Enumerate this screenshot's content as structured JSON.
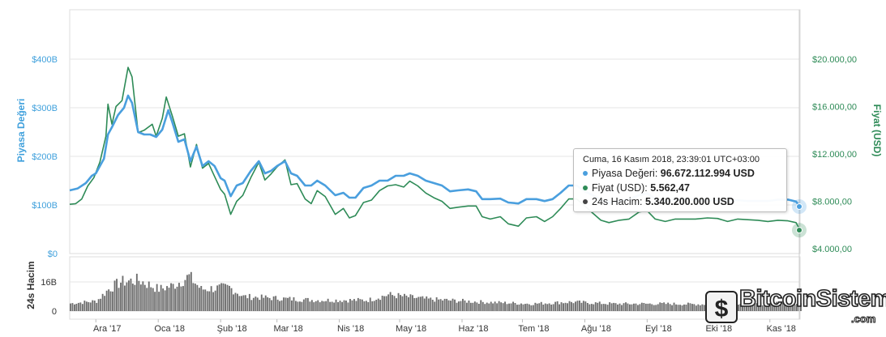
{
  "chart_data": {
    "type": "line",
    "left_axis": {
      "label": "Piyasa Değeri",
      "ticks": [
        "$0",
        "$100B",
        "$200B",
        "$300B",
        "$400B"
      ],
      "tick_values": [
        0,
        100,
        200,
        300,
        400
      ],
      "color": "#3fa0dc"
    },
    "right_axis": {
      "label": "Fiyat (USD)",
      "ticks": [
        "$4.000,00",
        "$8.000,00",
        "$12.000,00",
        "$16.000,00",
        "$20.000,00"
      ],
      "tick_values": [
        4000,
        8000,
        12000,
        16000,
        20000
      ],
      "color": "#2e8b57"
    },
    "volume_axis": {
      "label": "24s Hacim",
      "ticks": [
        "0",
        "16B"
      ],
      "tick_values": [
        0,
        16
      ]
    },
    "x_labels": [
      "Ara '17",
      "Oca '18",
      "Şub '18",
      "Mar '18",
      "Nis '18",
      "May '18",
      "Haz '18",
      "Tem '18",
      "Ağu '18",
      "Eyl '18",
      "Eki '18",
      "Kas '18"
    ],
    "x_range": [
      "2017-11-18",
      "2018-11-16"
    ],
    "series": [
      {
        "name": "Piyasa Değeri",
        "color": "#4a9fde",
        "unit": "B USD",
        "points": [
          [
            "2017-11-18",
            130
          ],
          [
            "2017-11-22",
            134
          ],
          [
            "2017-11-26",
            145
          ],
          [
            "2017-11-29",
            160
          ],
          [
            "2017-12-01",
            165
          ],
          [
            "2017-12-05",
            195
          ],
          [
            "2017-12-07",
            245
          ],
          [
            "2017-12-09",
            260
          ],
          [
            "2017-12-12",
            285
          ],
          [
            "2017-12-15",
            300
          ],
          [
            "2017-12-17",
            325
          ],
          [
            "2017-12-19",
            310
          ],
          [
            "2017-12-22",
            250
          ],
          [
            "2017-12-25",
            245
          ],
          [
            "2017-12-28",
            245
          ],
          [
            "2017-12-31",
            240
          ],
          [
            "2018-01-03",
            255
          ],
          [
            "2018-01-06",
            295
          ],
          [
            "2018-01-08",
            270
          ],
          [
            "2018-01-11",
            230
          ],
          [
            "2018-01-14",
            235
          ],
          [
            "2018-01-17",
            190
          ],
          [
            "2018-01-20",
            220
          ],
          [
            "2018-01-23",
            180
          ],
          [
            "2018-01-26",
            190
          ],
          [
            "2018-01-29",
            180
          ],
          [
            "2018-02-01",
            155
          ],
          [
            "2018-02-03",
            150
          ],
          [
            "2018-02-06",
            118
          ],
          [
            "2018-02-09",
            140
          ],
          [
            "2018-02-12",
            145
          ],
          [
            "2018-02-16",
            170
          ],
          [
            "2018-02-20",
            190
          ],
          [
            "2018-02-23",
            165
          ],
          [
            "2018-02-26",
            170
          ],
          [
            "2018-03-01",
            180
          ],
          [
            "2018-03-05",
            190
          ],
          [
            "2018-03-08",
            165
          ],
          [
            "2018-03-11",
            160
          ],
          [
            "2018-03-15",
            140
          ],
          [
            "2018-03-18",
            140
          ],
          [
            "2018-03-21",
            150
          ],
          [
            "2018-03-25",
            140
          ],
          [
            "2018-03-30",
            120
          ],
          [
            "2018-04-03",
            125
          ],
          [
            "2018-04-06",
            115
          ],
          [
            "2018-04-09",
            115
          ],
          [
            "2018-04-13",
            135
          ],
          [
            "2018-04-17",
            140
          ],
          [
            "2018-04-21",
            150
          ],
          [
            "2018-04-25",
            150
          ],
          [
            "2018-04-29",
            160
          ],
          [
            "2018-05-03",
            160
          ],
          [
            "2018-05-06",
            165
          ],
          [
            "2018-05-10",
            160
          ],
          [
            "2018-05-14",
            150
          ],
          [
            "2018-05-18",
            145
          ],
          [
            "2018-05-22",
            140
          ],
          [
            "2018-05-26",
            128
          ],
          [
            "2018-05-30",
            130
          ],
          [
            "2018-06-04",
            132
          ],
          [
            "2018-06-08",
            128
          ],
          [
            "2018-06-11",
            112
          ],
          [
            "2018-06-15",
            112
          ],
          [
            "2018-06-20",
            113
          ],
          [
            "2018-06-24",
            105
          ],
          [
            "2018-06-29",
            103
          ],
          [
            "2018-07-03",
            112
          ],
          [
            "2018-07-08",
            112
          ],
          [
            "2018-07-12",
            108
          ],
          [
            "2018-07-16",
            112
          ],
          [
            "2018-07-20",
            125
          ],
          [
            "2018-07-24",
            140
          ],
          [
            "2018-07-28",
            140
          ],
          [
            "2018-08-01",
            128
          ],
          [
            "2018-08-05",
            120
          ],
          [
            "2018-08-09",
            110
          ],
          [
            "2018-08-13",
            104
          ],
          [
            "2018-08-18",
            108
          ],
          [
            "2018-08-23",
            112
          ],
          [
            "2018-08-28",
            120
          ],
          [
            "2018-09-01",
            124
          ],
          [
            "2018-09-05",
            112
          ],
          [
            "2018-09-10",
            108
          ],
          [
            "2018-09-15",
            110
          ],
          [
            "2018-09-20",
            112
          ],
          [
            "2018-09-25",
            110
          ],
          [
            "2018-10-01",
            110
          ],
          [
            "2018-10-06",
            109
          ],
          [
            "2018-10-11",
            108
          ],
          [
            "2018-10-16",
            110
          ],
          [
            "2018-10-21",
            108
          ],
          [
            "2018-10-26",
            108
          ],
          [
            "2018-10-31",
            108
          ],
          [
            "2018-11-05",
            111
          ],
          [
            "2018-11-10",
            111
          ],
          [
            "2018-11-14",
            107
          ],
          [
            "2018-11-16",
            96.67
          ]
        ]
      },
      {
        "name": "Fiyat (USD)",
        "color": "#2e8b57",
        "unit": "USD",
        "points": [
          [
            "2017-11-18",
            7750
          ],
          [
            "2017-11-21",
            7800
          ],
          [
            "2017-11-24",
            8200
          ],
          [
            "2017-11-27",
            9300
          ],
          [
            "2017-11-30",
            10000
          ],
          [
            "2017-12-03",
            11300
          ],
          [
            "2017-12-06",
            13500
          ],
          [
            "2017-12-07",
            16200
          ],
          [
            "2017-12-09",
            14500
          ],
          [
            "2017-12-11",
            16000
          ],
          [
            "2017-12-14",
            16500
          ],
          [
            "2017-12-17",
            19300
          ],
          [
            "2017-12-19",
            18500
          ],
          [
            "2017-12-22",
            13800
          ],
          [
            "2017-12-25",
            14000
          ],
          [
            "2017-12-29",
            14500
          ],
          [
            "2017-12-31",
            13500
          ],
          [
            "2018-01-03",
            15000
          ],
          [
            "2018-01-05",
            16800
          ],
          [
            "2018-01-08",
            15200
          ],
          [
            "2018-01-11",
            13500
          ],
          [
            "2018-01-14",
            13700
          ],
          [
            "2018-01-17",
            10900
          ],
          [
            "2018-01-20",
            12800
          ],
          [
            "2018-01-23",
            10800
          ],
          [
            "2018-01-26",
            11200
          ],
          [
            "2018-01-29",
            10100
          ],
          [
            "2018-02-01",
            9000
          ],
          [
            "2018-02-03",
            8600
          ],
          [
            "2018-02-06",
            6900
          ],
          [
            "2018-02-09",
            8000
          ],
          [
            "2018-02-12",
            8500
          ],
          [
            "2018-02-16",
            10000
          ],
          [
            "2018-02-20",
            11300
          ],
          [
            "2018-02-23",
            9800
          ],
          [
            "2018-02-26",
            10300
          ],
          [
            "2018-03-01",
            10900
          ],
          [
            "2018-03-05",
            11500
          ],
          [
            "2018-03-08",
            9400
          ],
          [
            "2018-03-11",
            9500
          ],
          [
            "2018-03-15",
            8200
          ],
          [
            "2018-03-18",
            7800
          ],
          [
            "2018-03-21",
            8900
          ],
          [
            "2018-03-25",
            8400
          ],
          [
            "2018-03-30",
            6900
          ],
          [
            "2018-04-03",
            7400
          ],
          [
            "2018-04-06",
            6600
          ],
          [
            "2018-04-09",
            6800
          ],
          [
            "2018-04-13",
            7900
          ],
          [
            "2018-04-17",
            8100
          ],
          [
            "2018-04-21",
            8900
          ],
          [
            "2018-04-25",
            9300
          ],
          [
            "2018-04-29",
            9400
          ],
          [
            "2018-05-03",
            9200
          ],
          [
            "2018-05-06",
            9700
          ],
          [
            "2018-05-10",
            9300
          ],
          [
            "2018-05-14",
            8700
          ],
          [
            "2018-05-18",
            8300
          ],
          [
            "2018-05-22",
            8000
          ],
          [
            "2018-05-26",
            7400
          ],
          [
            "2018-05-30",
            7500
          ],
          [
            "2018-06-04",
            7600
          ],
          [
            "2018-06-08",
            7600
          ],
          [
            "2018-06-11",
            6700
          ],
          [
            "2018-06-15",
            6500
          ],
          [
            "2018-06-20",
            6700
          ],
          [
            "2018-06-24",
            6100
          ],
          [
            "2018-06-29",
            5900
          ],
          [
            "2018-07-03",
            6600
          ],
          [
            "2018-07-08",
            6700
          ],
          [
            "2018-07-12",
            6300
          ],
          [
            "2018-07-16",
            6700
          ],
          [
            "2018-07-20",
            7400
          ],
          [
            "2018-07-24",
            8200
          ],
          [
            "2018-07-28",
            8200
          ],
          [
            "2018-08-01",
            7600
          ],
          [
            "2018-08-05",
            7000
          ],
          [
            "2018-08-09",
            6400
          ],
          [
            "2018-08-13",
            6200
          ],
          [
            "2018-08-18",
            6400
          ],
          [
            "2018-08-23",
            6500
          ],
          [
            "2018-08-28",
            7100
          ],
          [
            "2018-09-01",
            7200
          ],
          [
            "2018-09-05",
            6500
          ],
          [
            "2018-09-10",
            6300
          ],
          [
            "2018-09-15",
            6500
          ],
          [
            "2018-09-20",
            6500
          ],
          [
            "2018-09-25",
            6500
          ],
          [
            "2018-10-01",
            6600
          ],
          [
            "2018-10-06",
            6550
          ],
          [
            "2018-10-11",
            6300
          ],
          [
            "2018-10-16",
            6500
          ],
          [
            "2018-10-21",
            6450
          ],
          [
            "2018-10-26",
            6400
          ],
          [
            "2018-10-31",
            6300
          ],
          [
            "2018-11-05",
            6400
          ],
          [
            "2018-11-10",
            6350
          ],
          [
            "2018-11-14",
            6200
          ],
          [
            "2018-11-16",
            5562.47
          ]
        ]
      },
      {
        "name": "24s Hacim",
        "color": "#555555",
        "unit": "B USD",
        "type": "bar",
        "anchors": [
          [
            "2017-11-18",
            4.2
          ],
          [
            "2017-12-01",
            5.5
          ],
          [
            "2017-12-07",
            12
          ],
          [
            "2017-12-13",
            16
          ],
          [
            "2017-12-22",
            17
          ],
          [
            "2018-01-01",
            12
          ],
          [
            "2018-01-08",
            14
          ],
          [
            "2018-01-16",
            19
          ],
          [
            "2018-01-22",
            12
          ],
          [
            "2018-02-05",
            13
          ],
          [
            "2018-02-12",
            8
          ],
          [
            "2018-03-01",
            7
          ],
          [
            "2018-03-20",
            6
          ],
          [
            "2018-04-15",
            6
          ],
          [
            "2018-04-25",
            9
          ],
          [
            "2018-05-15",
            6.5
          ],
          [
            "2018-06-10",
            5
          ],
          [
            "2018-07-05",
            4
          ],
          [
            "2018-07-25",
            5
          ],
          [
            "2018-08-15",
            4
          ],
          [
            "2018-09-10",
            4
          ],
          [
            "2018-10-10",
            3.5
          ],
          [
            "2018-11-14",
            4.5
          ],
          [
            "2018-11-16",
            5.34
          ]
        ]
      }
    ],
    "tooltip": {
      "header": "Cuma, 16 Kasım 2018, 23:39:01 UTC+03:00",
      "rows": [
        {
          "label": "Piyasa Değeri:",
          "value": "96.672.112.994 USD",
          "color": "#4a9fde"
        },
        {
          "label": "Fiyat (USD):",
          "value": "5.562,47",
          "color": "#2e8b57"
        },
        {
          "label": "24s Hacim:",
          "value": "5.340.200.000 USD",
          "color": "#444444"
        }
      ]
    }
  },
  "watermark": {
    "text": "BitcoinSistemi",
    "sub": ".com"
  }
}
